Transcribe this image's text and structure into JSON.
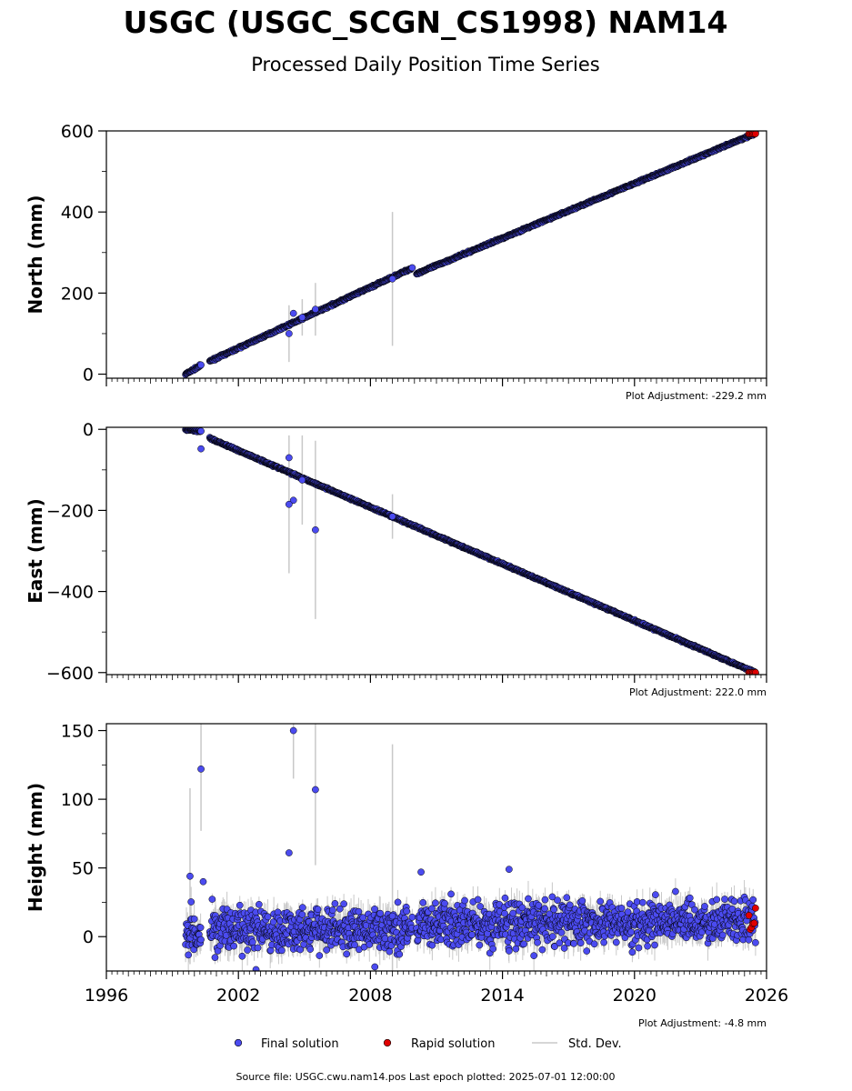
{
  "header": {
    "title": "USGC (USGC_SCGN_CS1998) NAM14",
    "subtitle": "Processed Daily Position Time Series"
  },
  "legend": {
    "final_label": "Final solution",
    "rapid_label": "Rapid solution",
    "std_label": "Std. Dev."
  },
  "footer": {
    "source": "Source file: USGC.cwu.nam14.pos  Last epoch plotted: 2025-07-01 12:00:00"
  },
  "colors": {
    "final": "#4b4bf0",
    "rapid": "#e00000",
    "std": "#c8c8c8",
    "marker_edge": "#000000"
  },
  "chart_data": [
    {
      "type": "scatter",
      "panel": "north",
      "ylabel": "North (mm)",
      "xlim": [
        1996,
        2026
      ],
      "ylim": [
        -10,
        600
      ],
      "yticks": [
        "0",
        "200",
        "400",
        "600"
      ],
      "xticks": [
        "1996",
        "2002",
        "2008",
        "2014",
        "2020",
        "2026"
      ],
      "adjustment": "Plot Adjustment: -229.2 mm",
      "segments": [
        {
          "x": [
            1999.6,
            2000.3
          ],
          "y": [
            0,
            22
          ]
        },
        {
          "x": [
            2000.7,
            2009.9
          ],
          "y": [
            32,
            262
          ]
        },
        {
          "x": [
            2010.1,
            2025.5
          ],
          "y": [
            248,
            594
          ]
        }
      ],
      "outliers": [
        {
          "x": 2004.3,
          "y": 100,
          "err": 70
        },
        {
          "x": 2004.5,
          "y": 150,
          "err": 0
        },
        {
          "x": 2009.0,
          "y": 235,
          "err": 165
        },
        {
          "x": 2005.5,
          "y": 160,
          "err": 65
        },
        {
          "x": 2004.9,
          "y": 140,
          "err": 45
        }
      ],
      "rapid": {
        "x_start": 2025.2,
        "x_end": 2025.5,
        "y": 593
      }
    },
    {
      "type": "scatter",
      "panel": "east",
      "ylabel": "East (mm)",
      "xlim": [
        1996,
        2026
      ],
      "ylim": [
        -605,
        5
      ],
      "yticks": [
        "0",
        "−200",
        "−400",
        "−600"
      ],
      "xticks": [
        "1996",
        "2002",
        "2008",
        "2014",
        "2020",
        "2026"
      ],
      "adjustment": "Plot Adjustment: 222.0 mm",
      "segments": [
        {
          "x": [
            1999.6,
            2000.3
          ],
          "y": [
            0,
            -5
          ]
        },
        {
          "x": [
            2000.7,
            2025.5
          ],
          "y": [
            -22,
            -600
          ]
        }
      ],
      "outliers": [
        {
          "x": 2000.3,
          "y": -48,
          "err": 0
        },
        {
          "x": 2004.3,
          "y": -70,
          "err": 0
        },
        {
          "x": 2004.5,
          "y": -175,
          "err": 0
        },
        {
          "x": 2005.5,
          "y": -248,
          "err": 220
        },
        {
          "x": 2004.3,
          "y": -185,
          "err": 170
        },
        {
          "x": 2004.9,
          "y": -125,
          "err": 110
        },
        {
          "x": 2009.0,
          "y": -215,
          "err": 55
        }
      ],
      "rapid": {
        "x_start": 2025.2,
        "x_end": 2025.5,
        "y": -600
      }
    },
    {
      "type": "scatter",
      "panel": "height",
      "ylabel": "Height (mm)",
      "xlim": [
        1996,
        2026
      ],
      "ylim": [
        -25,
        155
      ],
      "yticks": [
        "0",
        "50",
        "100",
        "150"
      ],
      "xticks": [
        "1996",
        "2002",
        "2008",
        "2014",
        "2020",
        "2026"
      ],
      "adjustment": "Plot Adjustment: -4.8 mm",
      "segments": [
        {
          "x": [
            1999.6,
            2000.3
          ],
          "y": [
            5,
            5
          ]
        },
        {
          "x": [
            2000.7,
            2009.9
          ],
          "y": [
            5,
            5
          ]
        },
        {
          "x": [
            2010.1,
            2025.5
          ],
          "y": [
            8,
            12
          ]
        }
      ],
      "scatter_sd": 8,
      "outliers": [
        {
          "x": 1999.8,
          "y": 44,
          "err": 64
        },
        {
          "x": 2000.3,
          "y": 122,
          "err": 45
        },
        {
          "x": 2000.4,
          "y": 40,
          "err": 0
        },
        {
          "x": 2004.3,
          "y": 61,
          "err": 0
        },
        {
          "x": 2004.5,
          "y": 150,
          "err": 35
        },
        {
          "x": 2005.5,
          "y": 107,
          "err": 55
        },
        {
          "x": 2009.0,
          "y": 15,
          "err": 125
        },
        {
          "x": 2010.3,
          "y": 47,
          "err": 0
        },
        {
          "x": 2014.3,
          "y": 49,
          "err": 0
        },
        {
          "x": 2008.2,
          "y": -22,
          "err": 0
        },
        {
          "x": 2002.8,
          "y": -24,
          "err": 0
        }
      ],
      "rapid": {
        "x_start": 2025.2,
        "x_end": 2025.5,
        "y": 12
      }
    }
  ]
}
